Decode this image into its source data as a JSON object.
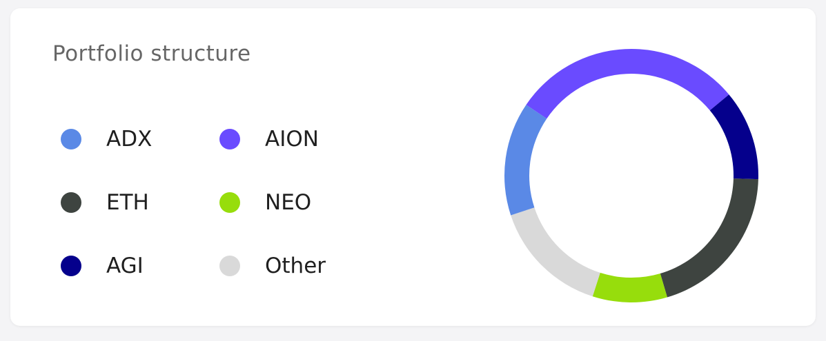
{
  "card": {
    "title": "Portfolio structure"
  },
  "chart_data": {
    "type": "pie",
    "title": "Portfolio structure",
    "legend_position": "left",
    "categories": [
      "ADX",
      "AION",
      "ETH",
      "NEO",
      "AGI",
      "Other"
    ],
    "slices": [
      {
        "label": "AION",
        "value": 29.5,
        "color": "#6a4bff"
      },
      {
        "label": "AGI",
        "value": 11.5,
        "color": "#05008c"
      },
      {
        "label": "ETH",
        "value": 20.0,
        "color": "#3e4440"
      },
      {
        "label": "NEO",
        "value": 9.5,
        "color": "#97dd0c"
      },
      {
        "label": "Other",
        "value": 15.0,
        "color": "#d9d9d9"
      },
      {
        "label": "ADX",
        "value": 14.5,
        "color": "#5a89e6"
      }
    ]
  },
  "legend": [
    {
      "label": "ADX",
      "color": "#5a89e6"
    },
    {
      "label": "AION",
      "color": "#6a4bff"
    },
    {
      "label": "ETH",
      "color": "#3e4440"
    },
    {
      "label": "NEO",
      "color": "#97dd0c"
    },
    {
      "label": "AGI",
      "color": "#05008c"
    },
    {
      "label": "Other",
      "color": "#d9d9d9"
    }
  ]
}
